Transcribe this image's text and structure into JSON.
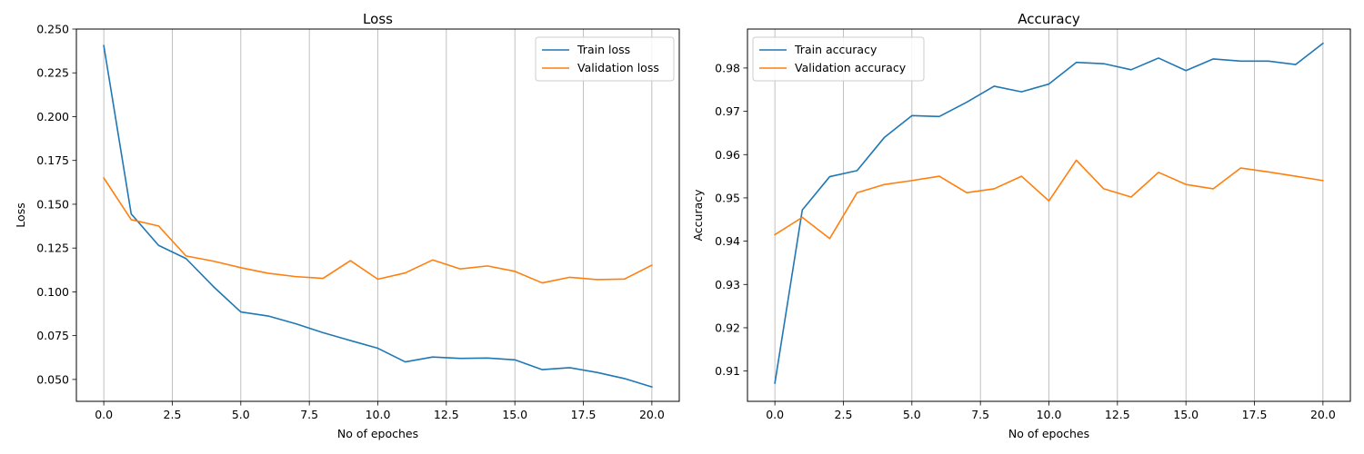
{
  "chart_data": [
    {
      "type": "line",
      "title": "Loss",
      "xlabel": "No of epoches",
      "ylabel": "Loss",
      "x": [
        0,
        1,
        2,
        3,
        4,
        5,
        6,
        7,
        8,
        9,
        10,
        11,
        12,
        13,
        14,
        15,
        16,
        17,
        18,
        19,
        20
      ],
      "xlim": [
        -1,
        21
      ],
      "ylim": [
        0.0375,
        0.25
      ],
      "xticks": [
        0.0,
        2.5,
        5.0,
        7.5,
        10.0,
        12.5,
        15.0,
        17.5,
        20.0
      ],
      "xtick_labels": [
        "0.0",
        "2.5",
        "5.0",
        "7.5",
        "10.0",
        "12.5",
        "15.0",
        "17.5",
        "20.0"
      ],
      "yticks": [
        0.05,
        0.075,
        0.1,
        0.125,
        0.15,
        0.175,
        0.2,
        0.225,
        0.25
      ],
      "ytick_labels": [
        "0.050",
        "0.075",
        "0.100",
        "0.125",
        "0.150",
        "0.175",
        "0.200",
        "0.225",
        "0.250"
      ],
      "grid": "x",
      "legend": "top-right",
      "series": [
        {
          "name": "Train loss",
          "color": "#1f77b4",
          "values": [
            0.2405,
            0.1445,
            0.1265,
            0.119,
            0.103,
            0.0885,
            0.0862,
            0.0818,
            0.0767,
            0.0722,
            0.0678,
            0.06,
            0.0628,
            0.062,
            0.0622,
            0.0612,
            0.0556,
            0.0567,
            0.054,
            0.0505,
            0.0457
          ]
        },
        {
          "name": "Validation loss",
          "color": "#ff7f0e",
          "values": [
            0.165,
            0.1412,
            0.1376,
            0.1205,
            0.1175,
            0.1138,
            0.1106,
            0.1087,
            0.1077,
            0.1178,
            0.1072,
            0.1108,
            0.1182,
            0.1131,
            0.1148,
            0.1117,
            0.1051,
            0.1083,
            0.107,
            0.1073,
            0.1152
          ]
        }
      ]
    },
    {
      "type": "line",
      "title": "Accuracy",
      "xlabel": "No of epoches",
      "ylabel": "Accuracy",
      "x": [
        0,
        1,
        2,
        3,
        4,
        5,
        6,
        7,
        8,
        9,
        10,
        11,
        12,
        13,
        14,
        15,
        16,
        17,
        18,
        19,
        20
      ],
      "xlim": [
        -1,
        21
      ],
      "ylim": [
        0.903,
        0.989
      ],
      "xticks": [
        0.0,
        2.5,
        5.0,
        7.5,
        10.0,
        12.5,
        15.0,
        17.5,
        20.0
      ],
      "xtick_labels": [
        "0.0",
        "2.5",
        "5.0",
        "7.5",
        "10.0",
        "12.5",
        "15.0",
        "17.5",
        "20.0"
      ],
      "yticks": [
        0.91,
        0.92,
        0.93,
        0.94,
        0.95,
        0.96,
        0.97,
        0.98
      ],
      "ytick_labels": [
        "0.91",
        "0.92",
        "0.93",
        "0.94",
        "0.95",
        "0.96",
        "0.97",
        "0.98"
      ],
      "grid": "x",
      "legend": "top-left",
      "series": [
        {
          "name": "Train accuracy",
          "color": "#1f77b4",
          "values": [
            0.9072,
            0.9472,
            0.9549,
            0.9563,
            0.964,
            0.969,
            0.9688,
            0.9721,
            0.9758,
            0.9745,
            0.9763,
            0.9813,
            0.981,
            0.9796,
            0.9823,
            0.9794,
            0.9821,
            0.9816,
            0.9816,
            0.9808,
            0.9857
          ]
        },
        {
          "name": "Validation accuracy",
          "color": "#ff7f0e",
          "values": [
            0.9415,
            0.9455,
            0.9406,
            0.9512,
            0.9531,
            0.954,
            0.955,
            0.9512,
            0.9521,
            0.955,
            0.9493,
            0.9587,
            0.9521,
            0.9502,
            0.9559,
            0.9531,
            0.9521,
            0.9569,
            0.956,
            0.955,
            0.954
          ]
        }
      ]
    }
  ]
}
